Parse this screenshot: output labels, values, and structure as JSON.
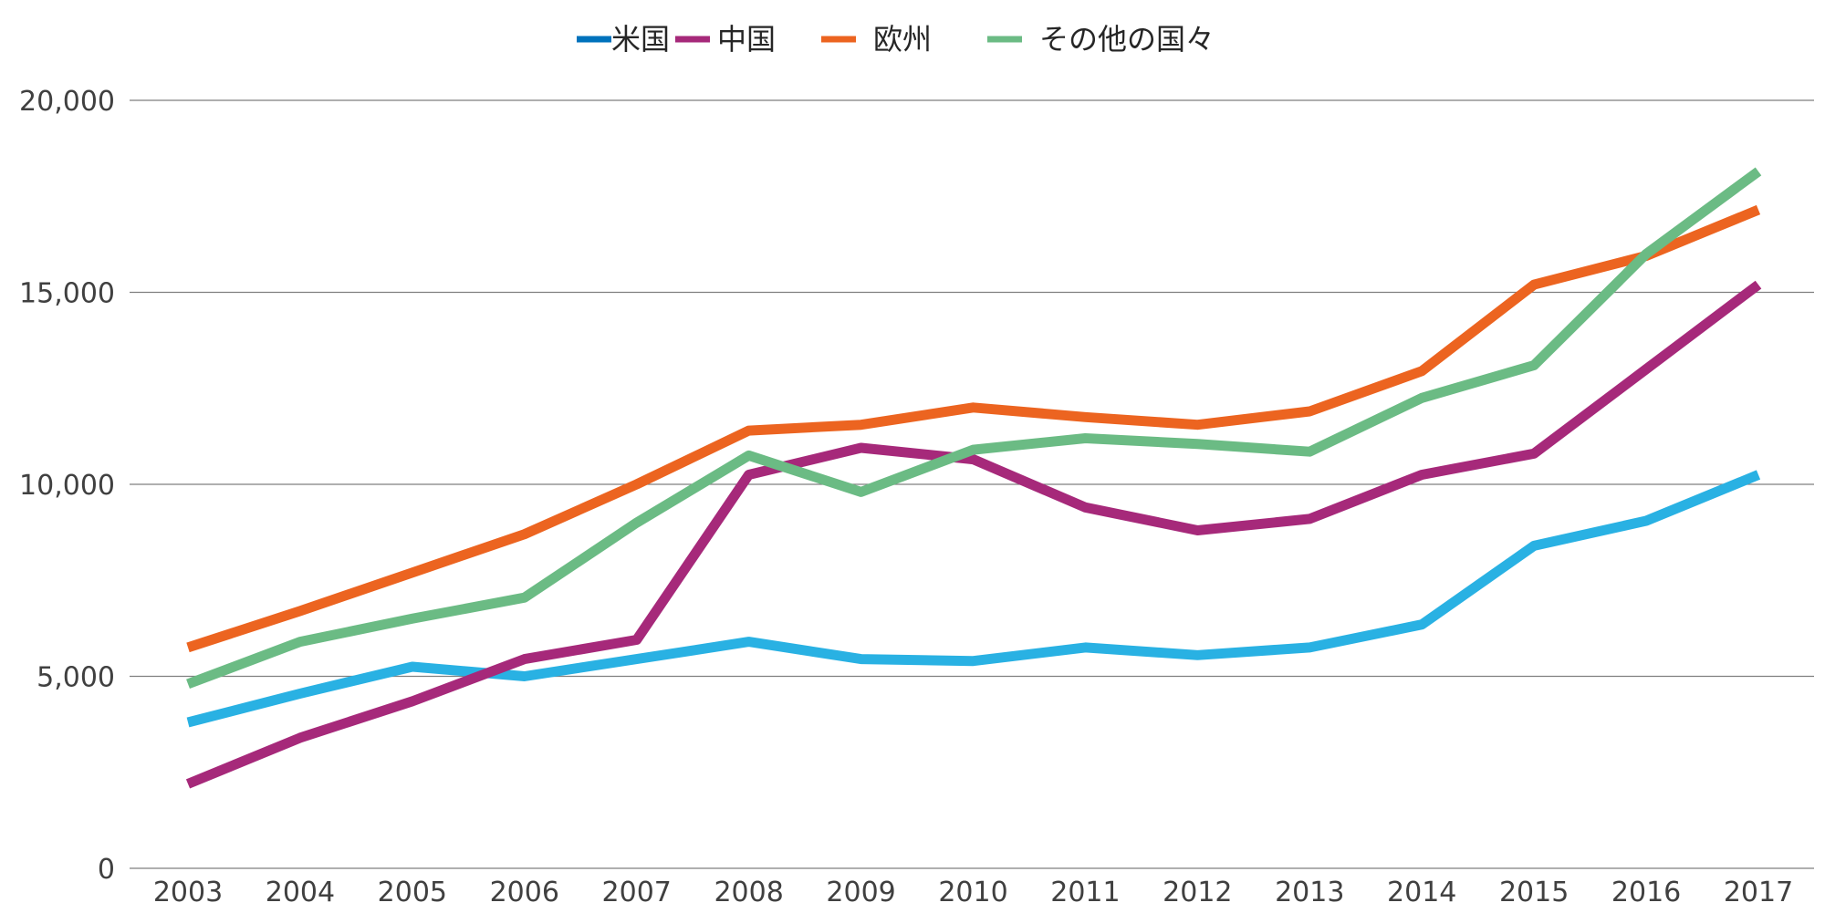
{
  "chart_data": {
    "type": "line",
    "title": "",
    "xlabel": "",
    "ylabel": "",
    "x": [
      "2003",
      "2004",
      "2005",
      "2006",
      "2007",
      "2008",
      "2009",
      "2010",
      "2011",
      "2012",
      "2013",
      "2014",
      "2015",
      "2016",
      "2017"
    ],
    "ylim": [
      0,
      20000
    ],
    "yticks": [
      0,
      5000,
      10000,
      15000,
      20000
    ],
    "ytick_labels": [
      "0",
      "5,000",
      "10,000",
      "15,000",
      "20,000"
    ],
    "grid": "horizontal",
    "legend_position": "top-center",
    "legend": [
      {
        "label": "米国",
        "color": "#0072BC"
      },
      {
        "label": "中国",
        "color": "#A6297A"
      },
      {
        "label": "欧州",
        "color": "#EC6420"
      },
      {
        "label": "その他の国々",
        "color": "#6BBB84"
      }
    ],
    "series": [
      {
        "name": "米国",
        "color": "#29B1E3",
        "values": [
          3800,
          4550,
          5250,
          5000,
          5450,
          5900,
          5450,
          5400,
          5750,
          5550,
          5750,
          6350,
          8400,
          9050,
          10250
        ]
      },
      {
        "name": "中国",
        "color": "#A6297A",
        "values": [
          2200,
          3400,
          4350,
          5450,
          5950,
          10250,
          10950,
          10650,
          9400,
          8800,
          9100,
          10250,
          10800,
          13000,
          15200
        ]
      },
      {
        "name": "欧州",
        "color": "#EC6420",
        "values": [
          5750,
          6700,
          7700,
          8700,
          10000,
          11400,
          11550,
          12000,
          11750,
          11550,
          11900,
          12950,
          15200,
          15950,
          17150
        ]
      },
      {
        "name": "その他の国々",
        "color": "#6BBB84",
        "values": [
          4800,
          5900,
          6500,
          7050,
          9000,
          10750,
          9800,
          10900,
          11200,
          11050,
          10850,
          12250,
          13100,
          16000,
          18150
        ]
      }
    ]
  }
}
